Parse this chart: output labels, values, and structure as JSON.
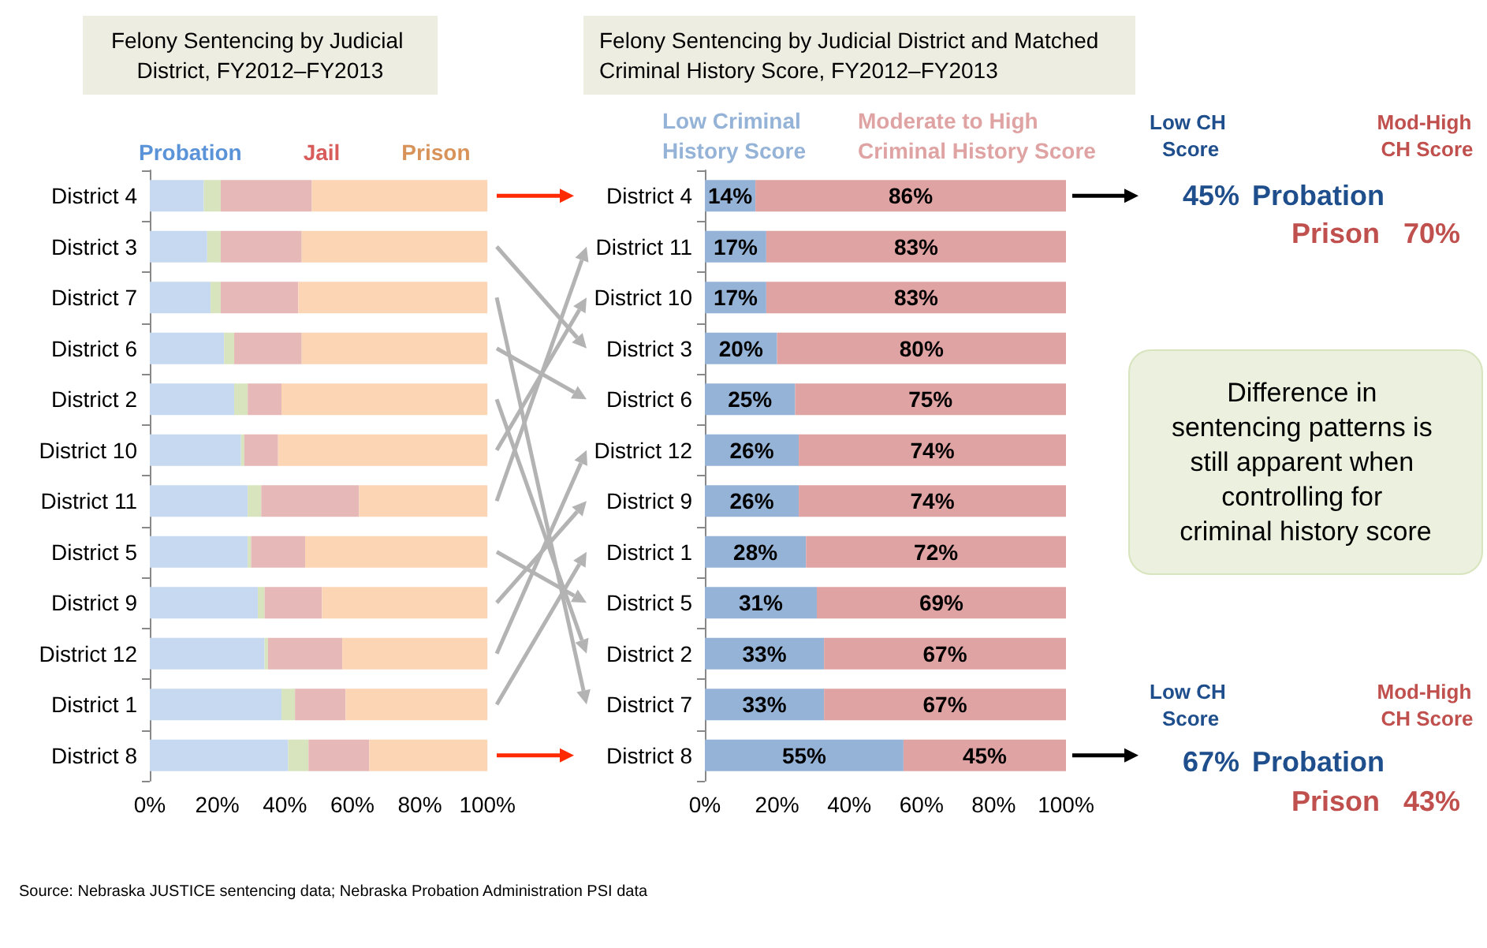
{
  "chart_data": [
    {
      "type": "bar",
      "orientation": "horizontal",
      "stacked": true,
      "title": "Felony Sentencing by Judicial District, FY2012–FY2013",
      "categories": [
        "District 4",
        "District 3",
        "District 7",
        "District 6",
        "District 2",
        "District 10",
        "District 11",
        "District 5",
        "District 9",
        "District 12",
        "District 1",
        "District 8"
      ],
      "series": [
        {
          "name": "Probation",
          "color": "#c6d9f0",
          "values": [
            16,
            17,
            18,
            22,
            25,
            27,
            29,
            29,
            32,
            34,
            39,
            41
          ]
        },
        {
          "color": "#d7e4bd",
          "values": [
            5,
            4,
            3,
            3,
            4,
            1,
            4,
            1,
            2,
            1,
            4,
            6
          ]
        },
        {
          "name": "Jail",
          "color": "#e6b9b8",
          "values": [
            27,
            24,
            23,
            20,
            10,
            10,
            29,
            16,
            17,
            22,
            15,
            18
          ]
        },
        {
          "name": "Prison",
          "color": "#fcd5b5",
          "values": [
            52,
            55,
            56,
            55,
            61,
            62,
            38,
            54,
            49,
            43,
            42,
            35
          ]
        }
      ],
      "xlim": [
        0,
        100
      ],
      "xticks": [
        {
          "value": 0,
          "label": "0%"
        },
        {
          "value": 20,
          "label": "20%"
        },
        {
          "value": 40,
          "label": "40%"
        },
        {
          "value": 60,
          "label": "60%"
        },
        {
          "value": 80,
          "label": "80%"
        },
        {
          "value": 100,
          "label": "100%"
        }
      ],
      "legend": "top",
      "annotations": [
        "Source: Nebraska JUSTICE sentencing data; Nebraska Probation Administration PSI data"
      ]
    },
    {
      "type": "bar",
      "orientation": "horizontal",
      "stacked": true,
      "title": "Felony Sentencing by Judicial District and Matched Criminal History Score, FY2012–FY2013",
      "categories": [
        "District 4",
        "District 11",
        "District 10",
        "District 3",
        "District 6",
        "District 12",
        "District 9",
        "District 1",
        "District 5",
        "District 2",
        "District 7",
        "District 8"
      ],
      "series": [
        {
          "name": "Low Criminal History Score",
          "color": "#95b3d7",
          "values": [
            14,
            17,
            17,
            20,
            25,
            26,
            26,
            28,
            31,
            33,
            33,
            55
          ],
          "value_labels": [
            "14%",
            "17%",
            "17%",
            "20%",
            "25%",
            "26%",
            "26%",
            "28%",
            "31%",
            "33%",
            "33%",
            "55%"
          ]
        },
        {
          "name": "Moderate to High Criminal History Score",
          "color": "#e0a3a3",
          "values": [
            86,
            83,
            83,
            80,
            75,
            74,
            74,
            72,
            69,
            67,
            67,
            45
          ],
          "value_labels": [
            "86%",
            "83%",
            "83%",
            "80%",
            "75%",
            "74%",
            "74%",
            "72%",
            "69%",
            "67%",
            "67%",
            "45%"
          ]
        }
      ],
      "xlim": [
        0,
        100
      ],
      "xticks": [
        {
          "value": 0,
          "label": "0%"
        },
        {
          "value": 20,
          "label": "20%"
        },
        {
          "value": 40,
          "label": "40%"
        },
        {
          "value": 60,
          "label": "60%"
        },
        {
          "value": 80,
          "label": "80%"
        },
        {
          "value": 100,
          "label": "100%"
        }
      ],
      "legend": "top",
      "annotations": [
        "Low CH Score",
        "Mod-High CH Score",
        "45%",
        "Probation",
        "Prison",
        "70%",
        "Low CH Score",
        "Mod-High CH Score",
        "67%",
        "Probation",
        "Prison",
        "43%",
        "Difference in sentencing patterns is still apparent when controlling for criminal history score"
      ]
    }
  ]
}
